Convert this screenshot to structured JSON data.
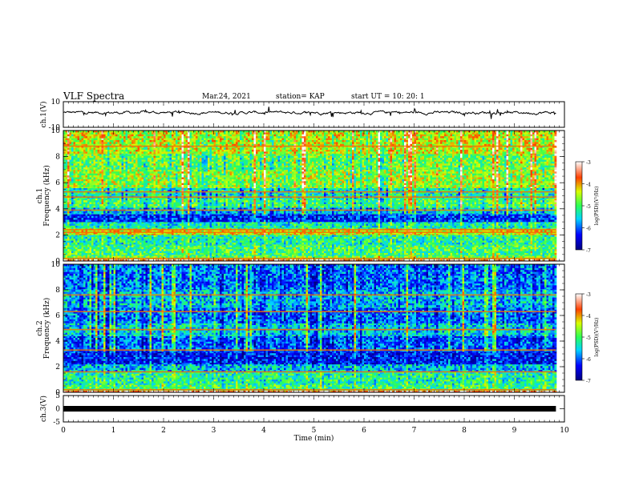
{
  "header": {
    "title": "VLF Spectra",
    "date": "Mar.24, 2021",
    "station": "station= KAP",
    "start_ut": "start  UT =   10: 20: 1"
  },
  "chart_data": [
    {
      "type": "line",
      "panel": "ch1-waveform",
      "ylabel": "ch.1(V)",
      "ylim": [
        -10,
        10
      ],
      "yticks": [
        "10",
        "-10"
      ],
      "xlim": [
        0,
        10
      ],
      "x_end": 9.83,
      "mean": 1.5,
      "amplitude": 2.5,
      "color": "#000000"
    },
    {
      "type": "heatmap",
      "panel": "ch1-spectrogram",
      "ylabel": "ch.1\nFrequency (kHz)",
      "ylim": [
        0,
        10
      ],
      "yticks": [
        "0",
        "2",
        "4",
        "6",
        "8",
        "10"
      ],
      "xlim": [
        0,
        10
      ],
      "x_end": 9.83,
      "bands": [
        {
          "f0": 0.0,
          "f1": 0.15,
          "level": -3.4
        },
        {
          "f0": 0.15,
          "f1": 0.4,
          "level": -4.8
        },
        {
          "f0": 0.4,
          "f1": 1.2,
          "level": -5.0
        },
        {
          "f0": 1.2,
          "f1": 2.0,
          "level": -5.2
        },
        {
          "f0": 2.0,
          "f1": 2.5,
          "level": -4.3
        },
        {
          "f0": 2.5,
          "f1": 3.0,
          "level": -5.3
        },
        {
          "f0": 3.0,
          "f1": 3.6,
          "level": -6.2
        },
        {
          "f0": 3.6,
          "f1": 4.1,
          "level": -5.6
        },
        {
          "f0": 4.1,
          "f1": 4.8,
          "level": -5.0
        },
        {
          "f0": 4.8,
          "f1": 5.6,
          "level": -5.3
        },
        {
          "f0": 5.6,
          "f1": 7.0,
          "level": -4.6
        },
        {
          "f0": 7.0,
          "f1": 8.2,
          "level": -4.8
        },
        {
          "f0": 8.2,
          "f1": 10.0,
          "level": -4.4
        }
      ],
      "lines_khz": [
        0.2,
        2.2,
        2.4,
        3.9,
        4.9,
        5.3,
        8.8
      ]
    },
    {
      "type": "heatmap",
      "panel": "ch2-spectrogram",
      "ylabel": "ch.2\nFrequency (kHz)",
      "ylim": [
        0,
        10
      ],
      "yticks": [
        "0",
        "2",
        "4",
        "6",
        "8",
        "10"
      ],
      "xlim": [
        0,
        10
      ],
      "x_end": 9.83,
      "bands": [
        {
          "f0": 0.0,
          "f1": 0.15,
          "level": -3.4
        },
        {
          "f0": 0.15,
          "f1": 0.6,
          "level": -5.0
        },
        {
          "f0": 0.6,
          "f1": 1.6,
          "level": -5.2
        },
        {
          "f0": 1.6,
          "f1": 2.2,
          "level": -5.6
        },
        {
          "f0": 2.2,
          "f1": 3.2,
          "level": -6.3
        },
        {
          "f0": 3.2,
          "f1": 4.4,
          "level": -6.0
        },
        {
          "f0": 4.4,
          "f1": 5.4,
          "level": -5.5
        },
        {
          "f0": 5.4,
          "f1": 6.6,
          "level": -5.9
        },
        {
          "f0": 6.6,
          "f1": 8.0,
          "level": -5.6
        },
        {
          "f0": 8.0,
          "f1": 10.0,
          "level": -5.9
        }
      ],
      "lines_khz": [
        0.2,
        1.6,
        3.3,
        4.9,
        6.3,
        7.6
      ]
    },
    {
      "type": "line",
      "panel": "ch3-waveform",
      "ylabel": "ch.3(V)",
      "ylim": [
        -5,
        5
      ],
      "yticks": [
        "5",
        "0",
        "-5"
      ],
      "xlim": [
        0,
        10
      ],
      "x_end": 9.83,
      "constant": 0,
      "xlabel": "Time  (min)",
      "xticks": [
        "0",
        "1",
        "2",
        "3",
        "4",
        "5",
        "6",
        "7",
        "8",
        "9",
        "10"
      ]
    }
  ],
  "colorbars": [
    {
      "panel": "ch1",
      "label": "log(PSD)(V²/Hz)",
      "range": [
        -7,
        -3
      ],
      "ticks": [
        "-3",
        "-4",
        "-5",
        "-6",
        "-7"
      ]
    },
    {
      "panel": "ch2",
      "label": "log(PSD)(V²/Hz)",
      "range": [
        -7,
        -3
      ],
      "ticks": [
        "-3",
        "-4",
        "-5",
        "-6",
        "-7"
      ]
    }
  ]
}
